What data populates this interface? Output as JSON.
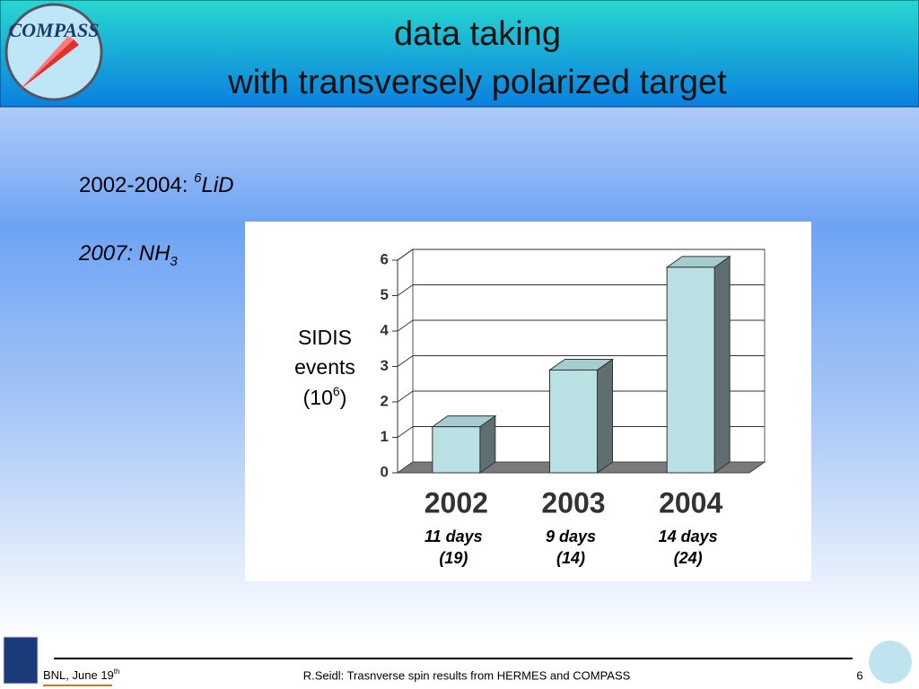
{
  "header": {
    "logo": "COMPASS",
    "title": [
      "data taking",
      "with transversely polarized target"
    ]
  },
  "targets": [
    {
      "years": "2002-2004:",
      "superscript": "6",
      "material": "LiD"
    },
    {
      "years": "2007:",
      "material": "NH",
      "subscript": "3"
    }
  ],
  "chart_data": {
    "type": "bar",
    "y_label": [
      "SIDIS",
      "events",
      "(10"
    ],
    "y_label_superscript": "6",
    "y_label_close": ")",
    "categories": [
      "2002",
      "2003",
      "2004"
    ],
    "values": [
      1.3,
      2.9,
      5.8
    ],
    "annotations": [
      [
        "11 days",
        "(19)"
      ],
      [
        "9 days",
        "(14)"
      ],
      [
        "14 days",
        "(24)"
      ]
    ],
    "color": "#b9e0e3",
    "ylim": [
      0,
      6
    ],
    "yticks": [
      0,
      1,
      2,
      3,
      4,
      5,
      6
    ],
    "grid": true
  },
  "footer": {
    "venue": "BNL, June 19",
    "venue_superscript": "th",
    "author": "R.Seidl: Trasnverse spin results from HERMES and COMPASS",
    "page": "6"
  }
}
